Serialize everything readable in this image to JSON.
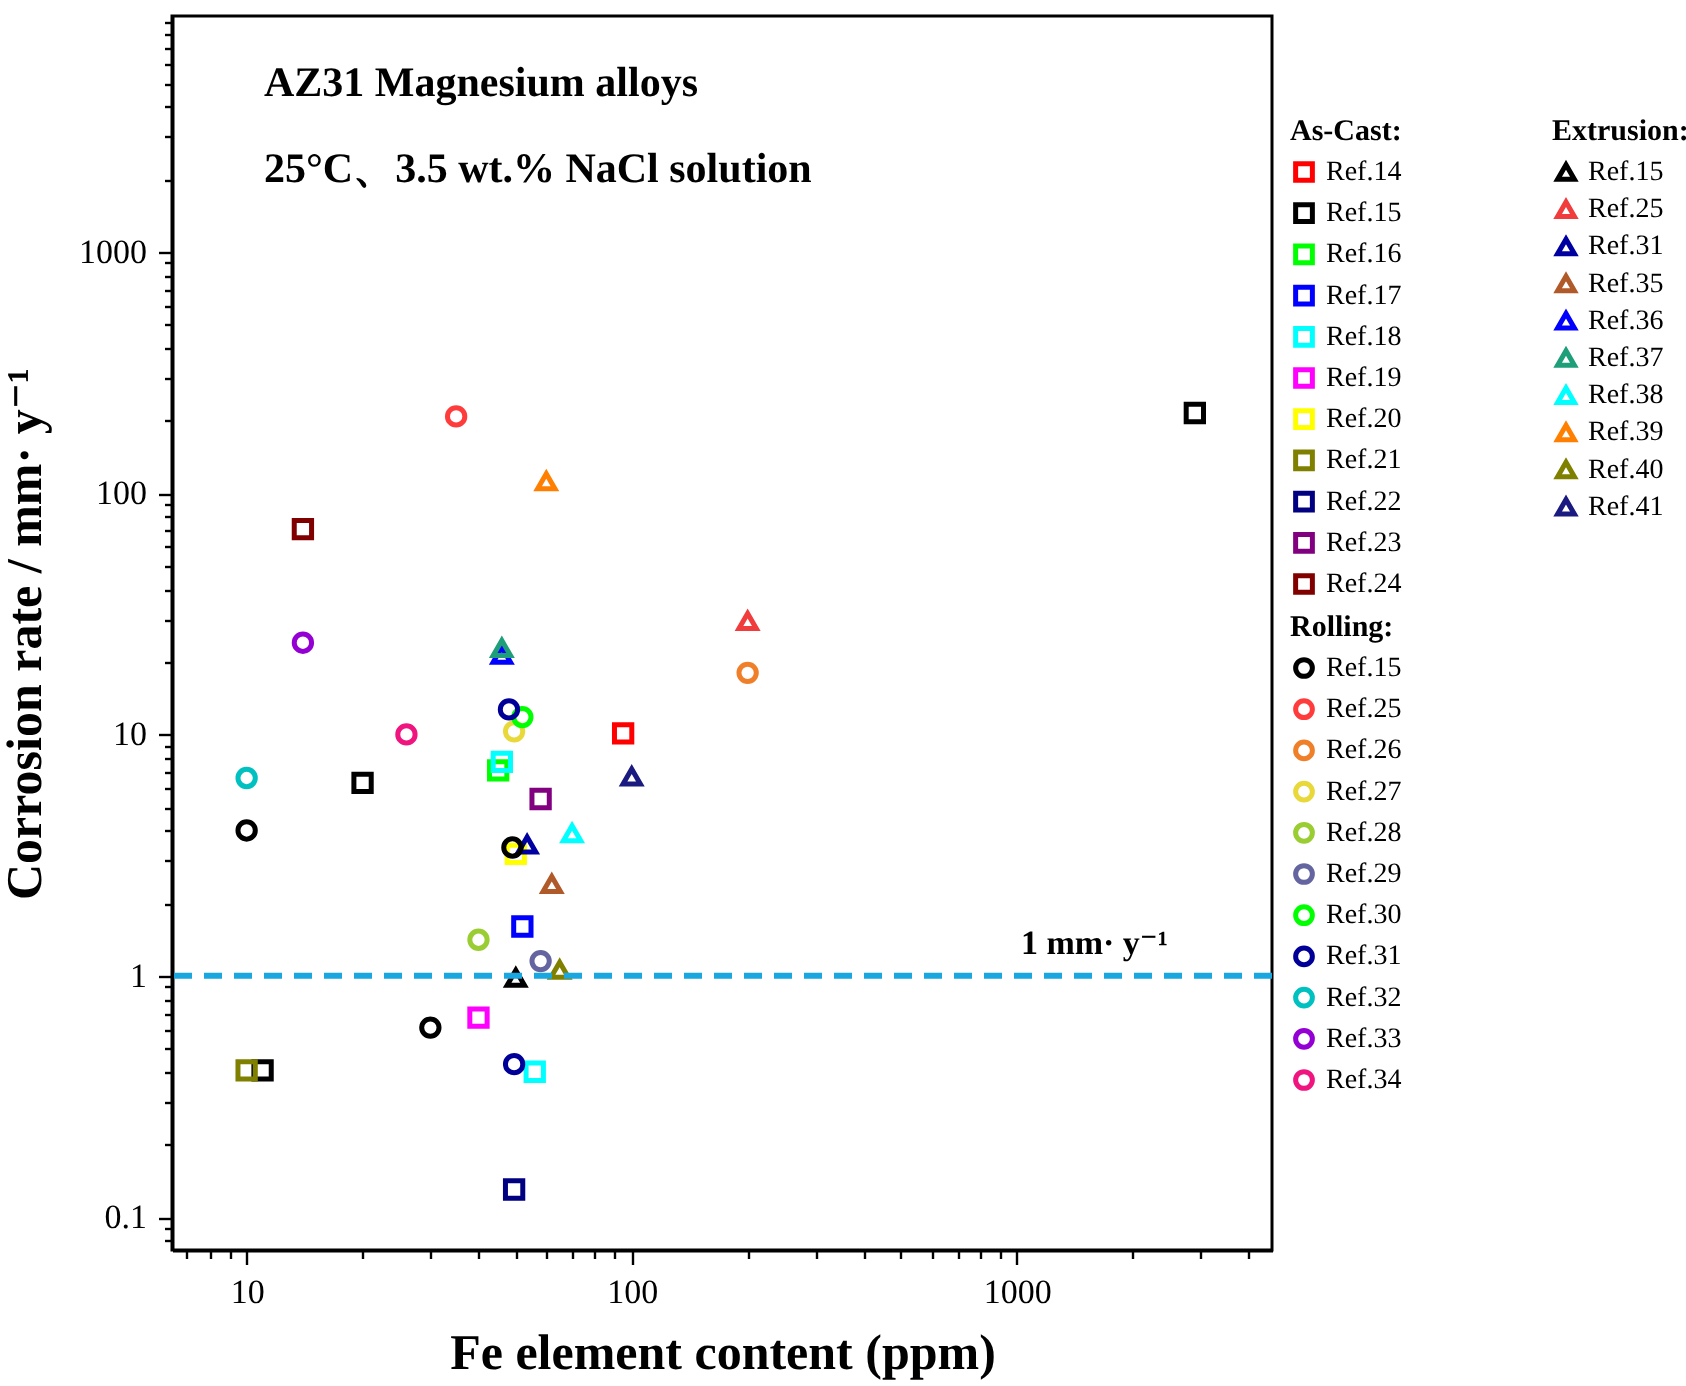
{
  "chart_data": {
    "type": "scatter",
    "title": "AZ31 Magnesium alloys",
    "subtitle": "25°C、3.5 wt.%  NaCl solution",
    "xlabel": "Fe element content (ppm)",
    "ylabel": "Corrosion rate / mm· y⁻¹",
    "log": "xy",
    "legend": "right",
    "xlim": [
      6.4,
      4600
    ],
    "ylim": [
      0.073,
      9500
    ],
    "xticks": [
      {
        "value": 7,
        "label": null
      },
      {
        "value": 8,
        "label": null
      },
      {
        "value": 9,
        "label": null
      },
      10,
      {
        "value": 20,
        "label": null
      },
      {
        "value": 30,
        "label": null
      },
      {
        "value": 40,
        "label": null
      },
      {
        "value": 50,
        "label": null
      },
      {
        "value": 60,
        "label": null
      },
      {
        "value": 70,
        "label": null
      },
      {
        "value": 80,
        "label": null
      },
      {
        "value": 90,
        "label": null
      },
      100,
      {
        "value": 200,
        "label": null
      },
      {
        "value": 300,
        "label": null
      },
      {
        "value": 400,
        "label": null
      },
      {
        "value": 500,
        "label": null
      },
      {
        "value": 600,
        "label": null
      },
      {
        "value": 700,
        "label": null
      },
      {
        "value": 800,
        "label": null
      },
      {
        "value": 900,
        "label": null
      },
      1000,
      {
        "value": 2000,
        "label": null
      },
      {
        "value": 3000,
        "label": null
      },
      {
        "value": 4000,
        "label": null
      }
    ],
    "yticks": [
      {
        "value": 0.08,
        "label": null
      },
      {
        "value": 0.09,
        "label": null
      },
      0.1,
      {
        "value": 0.2,
        "label": null
      },
      {
        "value": 0.3,
        "label": null
      },
      {
        "value": 0.4,
        "label": null
      },
      {
        "value": 0.5,
        "label": null
      },
      {
        "value": 0.6,
        "label": null
      },
      {
        "value": 0.7,
        "label": null
      },
      {
        "value": 0.8,
        "label": null
      },
      {
        "value": 0.9,
        "label": null
      },
      1,
      {
        "value": 2,
        "label": null
      },
      {
        "value": 3,
        "label": null
      },
      {
        "value": 4,
        "label": null
      },
      {
        "value": 5,
        "label": null
      },
      {
        "value": 6,
        "label": null
      },
      {
        "value": 7,
        "label": null
      },
      {
        "value": 8,
        "label": null
      },
      {
        "value": 9,
        "label": null
      },
      10,
      {
        "value": 20,
        "label": null
      },
      {
        "value": 30,
        "label": null
      },
      {
        "value": 40,
        "label": null
      },
      {
        "value": 50,
        "label": null
      },
      {
        "value": 60,
        "label": null
      },
      {
        "value": 70,
        "label": null
      },
      {
        "value": 80,
        "label": null
      },
      {
        "value": 90,
        "label": null
      },
      100,
      {
        "value": 200,
        "label": null
      },
      {
        "value": 300,
        "label": null
      },
      {
        "value": 400,
        "label": null
      },
      {
        "value": 500,
        "label": null
      },
      {
        "value": 600,
        "label": null
      },
      {
        "value": 700,
        "label": null
      },
      {
        "value": 800,
        "label": null
      },
      {
        "value": 900,
        "label": null
      },
      1000,
      {
        "value": 2000,
        "label": null
      },
      {
        "value": 3000,
        "label": null
      },
      {
        "value": 4000,
        "label": null
      },
      {
        "value": 5000,
        "label": null
      },
      {
        "value": 6000,
        "label": null
      },
      {
        "value": 7000,
        "label": null
      },
      {
        "value": 8000,
        "label": null
      },
      {
        "value": 9000,
        "label": null
      }
    ],
    "annotations": [
      "As-Cast:",
      "Extrusion:",
      "Rolling:"
    ],
    "ref_lines": [
      {
        "axis": "y",
        "value": 1,
        "label": "1 mm· y⁻¹",
        "color": "#1aa7e0",
        "line_style": "dashed"
      }
    ],
    "series": [
      {
        "name": "Ref.14",
        "marker": "square",
        "color": "#ff0000",
        "x": [
          95
        ],
        "values": [
          10.1
        ]
      },
      {
        "name": "Ref.15",
        "marker": "square",
        "color": "#000000",
        "x": [
          20,
          11,
          2900
        ],
        "values": [
          6.3,
          0.405,
          215
        ]
      },
      {
        "name": "Ref.16",
        "marker": "square",
        "color": "#00ff00",
        "x": [
          45
        ],
        "values": [
          7.1
        ]
      },
      {
        "name": "Ref.17",
        "marker": "square",
        "color": "#0000ff",
        "x": [
          52
        ],
        "values": [
          1.6
        ]
      },
      {
        "name": "Ref.18",
        "marker": "square",
        "color": "#00ffff",
        "x": [
          46,
          56
        ],
        "values": [
          7.7,
          0.4
        ]
      },
      {
        "name": "Ref.19",
        "marker": "square",
        "color": "#ff00ff",
        "x": [
          40
        ],
        "values": [
          0.67
        ]
      },
      {
        "name": "Ref.20",
        "marker": "square",
        "color": "#ffff00",
        "x": [
          50
        ],
        "values": [
          3.2
        ]
      },
      {
        "name": "Ref.21",
        "marker": "square",
        "color": "#808000",
        "x": [
          10
        ],
        "values": [
          0.405
        ]
      },
      {
        "name": "Ref.22",
        "marker": "square",
        "color": "#000080",
        "x": [
          49.5
        ],
        "values": [
          0.13
        ]
      },
      {
        "name": "Ref.23",
        "marker": "square",
        "color": "#800080",
        "x": [
          58
        ],
        "values": [
          5.4
        ]
      },
      {
        "name": "Ref.24",
        "marker": "square",
        "color": "#800000",
        "x": [
          14
        ],
        "values": [
          71
        ]
      },
      {
        "name": "Ref.15",
        "marker": "triangle",
        "color": "#000000",
        "x": [
          50
        ],
        "values": [
          0.98
        ]
      },
      {
        "name": "Ref.25",
        "marker": "triangle",
        "color": "#f03c3c",
        "x": [
          200
        ],
        "values": [
          29.5
        ]
      },
      {
        "name": "Ref.31",
        "marker": "triangle",
        "color": "#0000a0",
        "x": [
          53.5
        ],
        "values": [
          3.5
        ]
      },
      {
        "name": "Ref.35",
        "marker": "triangle",
        "color": "#b05a2a",
        "x": [
          62
        ],
        "values": [
          2.4
        ]
      },
      {
        "name": "Ref.36",
        "marker": "triangle",
        "color": "#0000ff",
        "x": [
          46
        ],
        "values": [
          21.4
        ]
      },
      {
        "name": "Ref.37",
        "marker": "triangle",
        "color": "#1f9e7a",
        "x": [
          46
        ],
        "values": [
          22.8
        ]
      },
      {
        "name": "Ref.38",
        "marker": "triangle",
        "color": "#00ffff",
        "x": [
          70
        ],
        "values": [
          3.9
        ]
      },
      {
        "name": "Ref.39",
        "marker": "triangle",
        "color": "#ff8000",
        "x": [
          60
        ],
        "values": [
          112
        ]
      },
      {
        "name": "Ref.40",
        "marker": "triangle",
        "color": "#808000",
        "x": [
          65
        ],
        "values": [
          1.06
        ]
      },
      {
        "name": "Ref.41",
        "marker": "triangle",
        "color": "#1a1a80",
        "x": [
          100
        ],
        "values": [
          6.7
        ]
      },
      {
        "name": "Ref.15",
        "marker": "circle",
        "color": "#000000",
        "x": [
          10,
          30,
          49
        ],
        "values": [
          4.0,
          0.61,
          3.4
        ]
      },
      {
        "name": "Ref.25",
        "marker": "circle",
        "color": "#ff3c3c",
        "x": [
          35
        ],
        "values": [
          208
        ]
      },
      {
        "name": "Ref.26",
        "marker": "circle",
        "color": "#f07f2a",
        "x": [
          200
        ],
        "values": [
          18
        ]
      },
      {
        "name": "Ref.27",
        "marker": "circle",
        "color": "#e8d83a",
        "x": [
          49.5
        ],
        "values": [
          10.3
        ]
      },
      {
        "name": "Ref.28",
        "marker": "circle",
        "color": "#9acd32",
        "x": [
          40
        ],
        "values": [
          1.41
        ]
      },
      {
        "name": "Ref.29",
        "marker": "circle",
        "color": "#6464a0",
        "x": [
          58
        ],
        "values": [
          1.15
        ]
      },
      {
        "name": "Ref.30",
        "marker": "circle",
        "color": "#00ff00",
        "x": [
          52
        ],
        "values": [
          11.8
        ]
      },
      {
        "name": "Ref.31",
        "marker": "circle",
        "color": "#000099",
        "x": [
          48,
          49.5
        ],
        "values": [
          12.7,
          0.43
        ]
      },
      {
        "name": "Ref.32",
        "marker": "circle",
        "color": "#00c0c0",
        "x": [
          10
        ],
        "values": [
          6.6
        ]
      },
      {
        "name": "Ref.33",
        "marker": "circle",
        "color": "#9400d3",
        "x": [
          14
        ],
        "values": [
          24
        ]
      },
      {
        "name": "Ref.34",
        "marker": "circle",
        "color": "#f0147f",
        "x": [
          26
        ],
        "values": [
          10
        ]
      }
    ]
  }
}
